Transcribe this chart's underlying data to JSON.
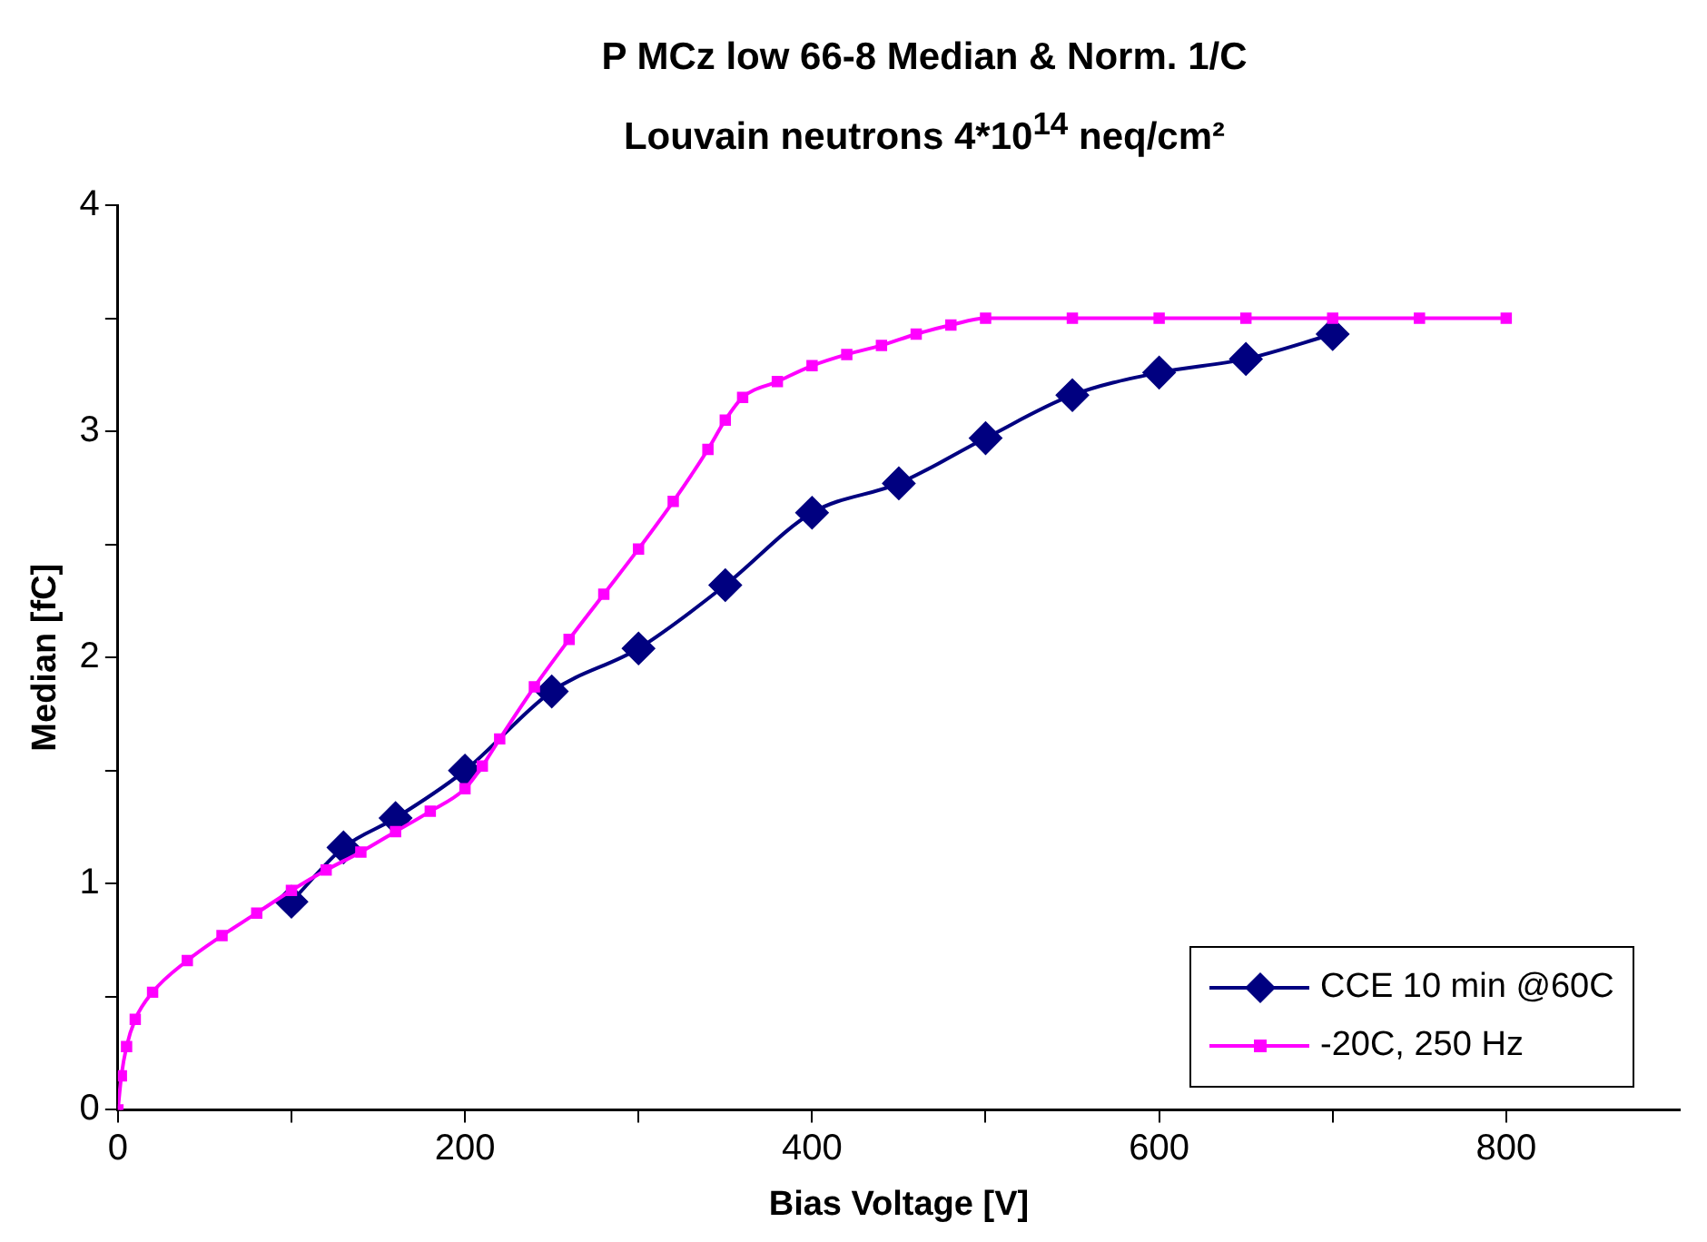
{
  "chart_data": {
    "type": "line",
    "title": "P MCz low 66-8 Median & Norm. 1/C",
    "subtitle": "Louvain neutrons 4*10$^{14}$ neq/cm²",
    "xlabel": "Bias Voltage [V]",
    "ylabel": "Median [fC]",
    "xlim": [
      0,
      900
    ],
    "xticks": [
      0,
      {
        "value": 100,
        "label": null
      },
      200,
      {
        "value": 300,
        "label": null
      },
      400,
      {
        "value": 500,
        "label": null
      },
      600,
      {
        "value": 700,
        "label": null
      },
      800
    ],
    "ylim": [
      0,
      4
    ],
    "yticks": [
      0,
      {
        "value": 0.5,
        "label": null
      },
      1,
      {
        "value": 1.5,
        "label": null
      },
      2,
      {
        "value": 2.5,
        "label": null
      },
      3,
      {
        "value": 3.5,
        "label": null
      },
      4
    ],
    "grid": false,
    "legend": "bottom right",
    "series": [
      {
        "name": "CCE 10 min @60C",
        "color": "#000080",
        "marker": "diamond",
        "x": [
          100,
          130,
          160,
          200,
          250,
          300,
          350,
          400,
          450,
          500,
          550,
          600,
          650,
          700
        ],
        "values": [
          0.92,
          1.16,
          1.29,
          1.5,
          1.85,
          2.04,
          2.32,
          2.64,
          2.77,
          2.97,
          3.16,
          3.26,
          3.32,
          3.43
        ]
      },
      {
        "name": "-20C, 250 Hz",
        "color": "#ff00ff",
        "marker": "square",
        "x": [
          0,
          2,
          5,
          10,
          20,
          40,
          60,
          80,
          100,
          120,
          140,
          160,
          180,
          200,
          210,
          220,
          240,
          260,
          280,
          300,
          320,
          340,
          350,
          360,
          380,
          400,
          420,
          440,
          460,
          480,
          500,
          550,
          600,
          650,
          700,
          750,
          800
        ],
        "values": [
          0,
          0.15,
          0.28,
          0.4,
          0.52,
          0.66,
          0.77,
          0.87,
          0.97,
          1.06,
          1.14,
          1.23,
          1.32,
          1.42,
          1.52,
          1.64,
          1.87,
          2.08,
          2.28,
          2.48,
          2.69,
          2.92,
          3.05,
          3.15,
          3.22,
          3.29,
          3.34,
          3.38,
          3.43,
          3.47,
          3.5,
          3.5,
          3.5,
          3.5,
          3.5,
          3.5,
          3.5
        ]
      }
    ]
  }
}
